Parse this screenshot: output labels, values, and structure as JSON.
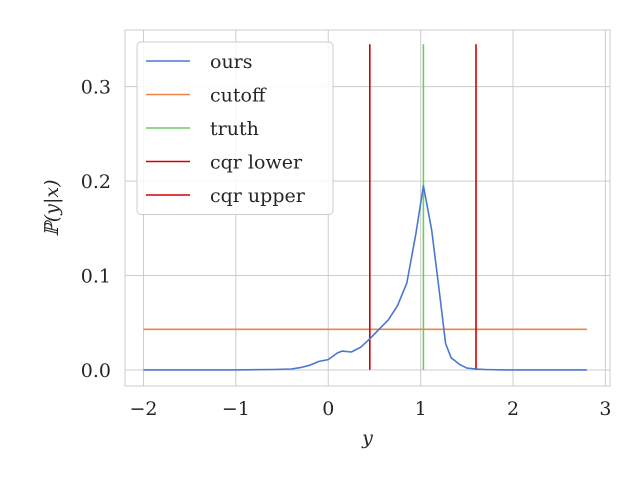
{
  "chart_data": {
    "type": "line",
    "xlabel": "y",
    "ylabel": "ℙ(y|x)",
    "xlim": [
      -2.2,
      3.05
    ],
    "ylim": [
      -0.017,
      0.36
    ],
    "x_ticks": [
      -2,
      -1,
      0,
      1,
      2,
      3
    ],
    "x_tick_labels": [
      "−2",
      "−1",
      "0",
      "1",
      "2",
      "3"
    ],
    "y_ticks": [
      0.0,
      0.1,
      0.2,
      0.3
    ],
    "y_tick_labels": [
      "0.0",
      "0.1",
      "0.2",
      "0.3"
    ],
    "grid": true,
    "legend_position": "top-left",
    "series": [
      {
        "name": "ours",
        "kind": "line",
        "color": "#4878d0",
        "x": [
          -2.0,
          -1.5,
          -1.0,
          -0.6,
          -0.4,
          -0.3,
          -0.2,
          -0.1,
          0.0,
          0.1,
          0.15,
          0.25,
          0.35,
          0.45,
          0.55,
          0.65,
          0.75,
          0.85,
          0.95,
          1.03,
          1.12,
          1.2,
          1.27,
          1.33,
          1.42,
          1.5,
          1.6,
          1.7,
          1.9,
          2.2,
          2.8
        ],
        "y": [
          0.0,
          0.0,
          0.0,
          0.0005,
          0.001,
          0.0025,
          0.005,
          0.009,
          0.011,
          0.018,
          0.02,
          0.019,
          0.024,
          0.033,
          0.043,
          0.053,
          0.068,
          0.092,
          0.145,
          0.195,
          0.148,
          0.085,
          0.028,
          0.013,
          0.006,
          0.002,
          0.001,
          0.0005,
          0.0,
          0.0,
          0.0
        ]
      },
      {
        "name": "cutoff",
        "kind": "hline",
        "color": "#ee854a",
        "x": [
          -2.0,
          2.8
        ],
        "y": [
          0.043,
          0.043
        ]
      },
      {
        "name": "truth",
        "kind": "vline",
        "color": "#6acc64",
        "x": [
          1.03,
          1.03
        ],
        "y": [
          0.0,
          0.345
        ]
      },
      {
        "name": "cqr lower",
        "kind": "vline",
        "color": "#d00000",
        "x": [
          0.45,
          0.45
        ],
        "y": [
          0.0,
          0.345
        ]
      },
      {
        "name": "cqr upper",
        "kind": "vline",
        "color": "#d00000",
        "x": [
          1.6,
          1.6
        ],
        "y": [
          0.0,
          0.345
        ]
      }
    ]
  }
}
